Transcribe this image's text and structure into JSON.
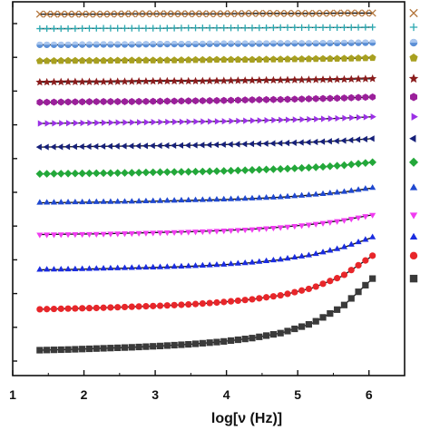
{
  "chart_data": {
    "type": "scatter",
    "title": "",
    "xlabel": "log[ν (Hz)]",
    "ylabel": "",
    "xlim": [
      1,
      6.5
    ],
    "ylim": [
      0,
      1
    ],
    "x_ticks": [
      "1",
      "2",
      "3",
      "4",
      "5",
      "6"
    ],
    "x_tick_values": [
      1,
      2,
      3,
      4,
      5,
      6
    ],
    "y_ticks_labeled": false,
    "y_minor_tick_count": 11,
    "grid": false,
    "legend": "right",
    "x_range": [
      1.38,
      6.05
    ],
    "series": [
      {
        "marker": "square",
        "color": "#3a3a3a",
        "legend_marker": "square",
        "y": [
          0.052,
          0.054,
          0.057,
          0.06,
          0.064,
          0.069,
          0.076,
          0.086,
          0.101,
          0.128,
          0.175,
          0.255
        ],
        "fit": [
          0.052,
          0.054,
          0.057,
          0.06,
          0.064,
          0.069,
          0.076,
          0.086,
          0.101,
          0.128,
          0.175,
          0.255
        ]
      },
      {
        "marker": "circle",
        "color": "#e8262a",
        "legend_marker": "circle",
        "y": [
          0.168,
          0.17,
          0.172,
          0.175,
          0.178,
          0.182,
          0.188,
          0.196,
          0.208,
          0.228,
          0.262,
          0.32
        ],
        "fit": [
          0.168,
          0.17,
          0.172,
          0.175,
          0.178,
          0.182,
          0.188,
          0.196,
          0.208,
          0.228,
          0.262,
          0.32
        ]
      },
      {
        "marker": "triangle-up",
        "color": "#1a2ce0",
        "legend_marker": "triangle-up",
        "y": [
          0.28,
          0.281,
          0.283,
          0.285,
          0.287,
          0.29,
          0.294,
          0.3,
          0.309,
          0.322,
          0.342,
          0.372
        ],
        "fit": [
          0.28,
          0.281,
          0.283,
          0.285,
          0.287,
          0.29,
          0.294,
          0.3,
          0.309,
          0.322,
          0.342,
          0.372
        ]
      },
      {
        "marker": "triangle-down",
        "color": "#f03cf0",
        "legend_marker": "triangle-down",
        "y": [
          0.38,
          0.381,
          0.382,
          0.384,
          0.386,
          0.388,
          0.391,
          0.395,
          0.401,
          0.409,
          0.42,
          0.436
        ],
        "fit": [
          0.38,
          0.381,
          0.382,
          0.384,
          0.386,
          0.388,
          0.391,
          0.395,
          0.401,
          0.409,
          0.42,
          0.436
        ]
      },
      {
        "marker": "triangle-up",
        "color": "#1f48d0",
        "legend_marker": "triangle-up",
        "y": [
          0.47,
          0.471,
          0.472,
          0.473,
          0.475,
          0.477,
          0.479,
          0.482,
          0.486,
          0.492,
          0.5,
          0.512
        ],
        "fit": [
          0.47,
          0.471,
          0.472,
          0.473,
          0.475,
          0.477,
          0.479,
          0.482,
          0.486,
          0.492,
          0.5,
          0.512
        ]
      },
      {
        "marker": "diamond",
        "color": "#23a83a",
        "legend_marker": "diamond",
        "y": [
          0.552,
          0.553,
          0.554,
          0.555,
          0.557,
          0.558,
          0.56,
          0.563,
          0.566,
          0.57,
          0.576,
          0.585
        ],
        "fit": [
          0.552,
          0.553,
          0.554,
          0.555,
          0.557,
          0.558,
          0.56,
          0.563,
          0.566,
          0.57,
          0.576,
          0.585
        ]
      },
      {
        "marker": "triangle-left",
        "color": "#16207a",
        "legend_marker": "triangle-left",
        "y": [
          0.628,
          0.629,
          0.63,
          0.631,
          0.632,
          0.633,
          0.635,
          0.637,
          0.639,
          0.642,
          0.646,
          0.652
        ],
        "fit": [
          0.628,
          0.629,
          0.63,
          0.631,
          0.632,
          0.633,
          0.635,
          0.637,
          0.639,
          0.642,
          0.646,
          0.652
        ]
      },
      {
        "marker": "triangle-right",
        "color": "#9b30e6",
        "legend_marker": "triangle-right",
        "y": [
          0.695,
          0.696,
          0.697,
          0.698,
          0.699,
          0.7,
          0.701,
          0.703,
          0.705,
          0.707,
          0.71,
          0.714
        ],
        "fit": [
          0.695,
          0.696,
          0.697,
          0.698,
          0.699,
          0.7,
          0.701,
          0.703,
          0.705,
          0.707,
          0.71,
          0.714
        ]
      },
      {
        "marker": "hexagon",
        "color": "#9b1f9b",
        "legend_marker": "hexagon",
        "y": [
          0.755,
          0.756,
          0.757,
          0.757,
          0.758,
          0.759,
          0.76,
          0.762,
          0.763,
          0.765,
          0.767,
          0.77
        ],
        "fit": [
          0.755,
          0.756,
          0.757,
          0.757,
          0.758,
          0.759,
          0.76,
          0.762,
          0.763,
          0.765,
          0.767,
          0.77
        ]
      },
      {
        "marker": "star",
        "color": "#8a1c1c",
        "legend_marker": "star",
        "y": [
          0.812,
          0.813,
          0.813,
          0.814,
          0.815,
          0.815,
          0.816,
          0.817,
          0.818,
          0.819,
          0.82,
          0.822
        ],
        "fit": [
          0.812,
          0.813,
          0.813,
          0.814,
          0.815,
          0.815,
          0.816,
          0.817,
          0.818,
          0.819,
          0.82,
          0.822
        ]
      },
      {
        "marker": "pentagon",
        "color": "#a8a020",
        "legend_marker": "pentagon",
        "y": [
          0.872,
          0.873,
          0.873,
          0.874,
          0.874,
          0.875,
          0.876,
          0.876,
          0.877,
          0.878,
          0.879,
          0.881
        ],
        "fit": [
          0.872,
          0.873,
          0.873,
          0.874,
          0.874,
          0.875,
          0.876,
          0.876,
          0.877,
          0.878,
          0.879,
          0.881
        ]
      },
      {
        "marker": "circle-half",
        "color": "#5b8fd6",
        "legend_marker": "circle-half",
        "y": [
          0.918,
          0.918,
          0.919,
          0.919,
          0.92,
          0.92,
          0.921,
          0.921,
          0.922,
          0.922,
          0.923,
          0.924
        ],
        "fit": [
          0.918,
          0.918,
          0.919,
          0.919,
          0.92,
          0.92,
          0.921,
          0.921,
          0.922,
          0.922,
          0.923,
          0.924
        ]
      },
      {
        "marker": "plus",
        "color": "#2aa8b0",
        "legend_marker": "plus",
        "y": [
          0.964,
          0.964,
          0.965,
          0.965,
          0.965,
          0.966,
          0.966,
          0.966,
          0.967,
          0.967,
          0.967,
          0.968
        ],
        "fit": [
          0.964,
          0.964,
          0.965,
          0.965,
          0.965,
          0.966,
          0.966,
          0.966,
          0.967,
          0.967,
          0.967,
          0.968
        ]
      },
      {
        "marker": "x",
        "color": "#b4763c",
        "legend_marker": "x",
        "y": [
          1.005,
          1.005,
          1.005,
          1.006,
          1.006,
          1.006,
          1.006,
          1.007,
          1.007,
          1.007,
          1.008,
          1.008
        ],
        "fit": [
          1.005,
          1.005,
          1.005,
          1.006,
          1.006,
          1.006,
          1.006,
          1.007,
          1.007,
          1.007,
          1.008,
          1.008
        ]
      }
    ]
  }
}
